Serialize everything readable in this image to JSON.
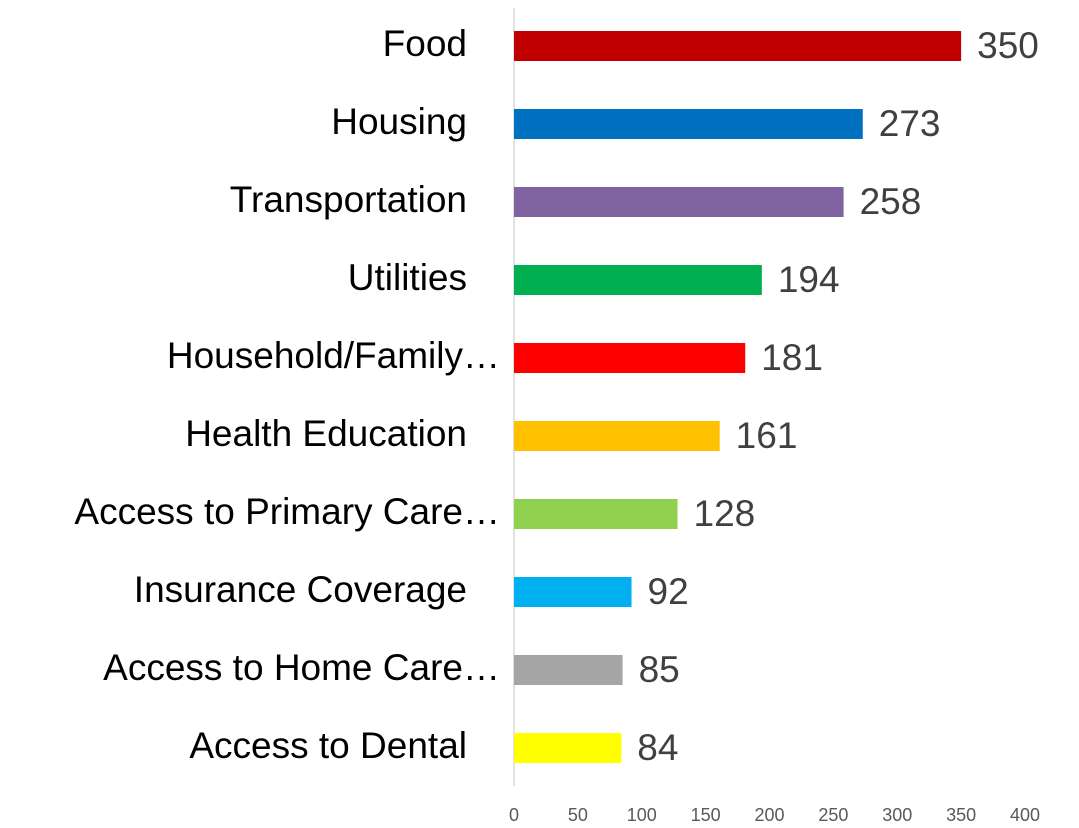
{
  "chart_data": {
    "type": "barh",
    "categories": [
      "Food",
      "Housing",
      "Transportation",
      "Utilities",
      "Household/Family…",
      "Health Education",
      "Access to Primary Care…",
      "Insurance Coverage",
      "Access to Home Care…",
      "Access to Dental"
    ],
    "values": [
      350,
      273,
      258,
      194,
      181,
      161,
      128,
      92,
      85,
      84
    ],
    "colors": [
      "#c00000",
      "#0070c0",
      "#8064a2",
      "#00b050",
      "#ff0000",
      "#ffc000",
      "#92d050",
      "#00b0f0",
      "#a5a5a5",
      "#ffff00"
    ],
    "xlim": [
      0,
      400
    ],
    "xticks": [
      0,
      50,
      100,
      150,
      200,
      250,
      300,
      350,
      400
    ],
    "grid": false
  }
}
